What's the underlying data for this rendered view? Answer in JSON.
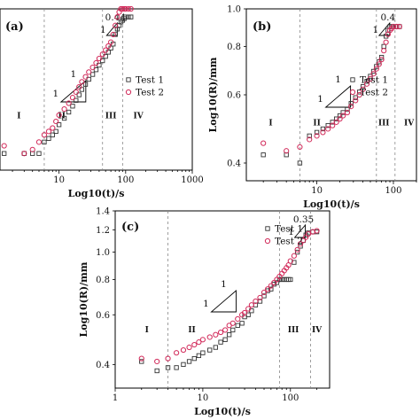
{
  "colors": {
    "test1": "#333333",
    "test2": "#d22a5a",
    "axis": "#000000",
    "divider": "#888888"
  },
  "chart_data": [
    {
      "panel": "(a)",
      "type": "scatter",
      "xscale": "log",
      "yscale": "log",
      "xlabel": "Log10(t)/s",
      "ylabel": "",
      "xlim": [
        1.3,
        1000
      ],
      "ylim": [
        0.36,
        1.0
      ],
      "xticks": [
        10,
        100,
        1000
      ],
      "xtick_labels": [
        "10",
        "100",
        "1000"
      ],
      "yticks": [],
      "ytick_labels": [],
      "dividers": [
        6,
        45,
        90
      ],
      "stages": [
        {
          "label": "I",
          "x": 2.5,
          "y": 0.5
        },
        {
          "label": "II",
          "x": 11,
          "y": 0.5
        },
        {
          "label": "III",
          "x": 60,
          "y": 0.5
        },
        {
          "label": "IV",
          "x": 155,
          "y": 0.5
        }
      ],
      "legend": {
        "position": "right",
        "entries": [
          "Test 1",
          "Test 2"
        ]
      },
      "slope_triangle": {
        "run_label": "1",
        "rise_label": "1"
      },
      "tail_slope": {
        "label": "0.44",
        "rise_label": "1"
      },
      "series": [
        {
          "name": "Test 1",
          "marker": "square",
          "x": [
            1.5,
            3.0,
            4.0,
            5.0,
            6.0,
            7.0,
            8.0,
            9.0,
            10.0,
            12.0,
            14.0,
            16.0,
            18.0,
            20.0,
            22.0,
            25.0,
            28.0,
            32.0,
            36.0,
            40.0,
            45.0,
            50.0,
            55.0,
            60.0,
            65.0,
            70.0,
            75.0,
            80.0,
            85.0,
            90.0,
            95.0,
            100.0,
            110.0,
            120.0
          ],
          "y": [
            0.4,
            0.4,
            0.4,
            0.4,
            0.43,
            0.44,
            0.45,
            0.46,
            0.48,
            0.5,
            0.52,
            0.54,
            0.56,
            0.58,
            0.6,
            0.62,
            0.64,
            0.66,
            0.68,
            0.7,
            0.72,
            0.74,
            0.76,
            0.78,
            0.8,
            0.85,
            0.88,
            0.9,
            0.92,
            0.93,
            0.94,
            0.95,
            0.95,
            0.95
          ]
        },
        {
          "name": "Test 2",
          "marker": "circle",
          "x": [
            1.5,
            3.0,
            4.0,
            5.0,
            6.0,
            7.0,
            8.0,
            9.0,
            10.0,
            12.0,
            14.0,
            16.0,
            18.0,
            20.0,
            22.0,
            25.0,
            28.0,
            32.0,
            36.0,
            40.0,
            45.0,
            50.0,
            55.0,
            60.0,
            65.0,
            70.0,
            75.0,
            80.0,
            85.0,
            90.0,
            95.0,
            100.0,
            110.0,
            120.0
          ],
          "y": [
            0.42,
            0.4,
            0.41,
            0.43,
            0.45,
            0.46,
            0.47,
            0.49,
            0.51,
            0.53,
            0.55,
            0.57,
            0.59,
            0.61,
            0.63,
            0.65,
            0.67,
            0.69,
            0.71,
            0.73,
            0.75,
            0.77,
            0.79,
            0.81,
            0.85,
            0.9,
            0.95,
            0.98,
            1.0,
            1.0,
            1.0,
            1.0,
            1.0,
            1.0
          ]
        }
      ]
    },
    {
      "panel": "(b)",
      "type": "scatter",
      "xscale": "log",
      "yscale": "log",
      "xlabel": "Log10(t)/s",
      "ylabel": "Log10(R)/mm",
      "xlim": [
        1.2,
        200
      ],
      "ylim": [
        0.36,
        1.0
      ],
      "xticks": [
        10,
        100
      ],
      "xtick_labels": [
        "10",
        "100"
      ],
      "yticks": [
        0.4,
        0.6,
        0.8,
        1.0
      ],
      "ytick_labels": [
        "0.4",
        "0.6",
        "0.8",
        "1.0"
      ],
      "dividers": [
        6,
        60,
        105
      ],
      "stages": [
        {
          "label": "I",
          "x": 2.5,
          "y": 0.5
        },
        {
          "label": "II",
          "x": 10,
          "y": 0.5
        },
        {
          "label": "III",
          "x": 75,
          "y": 0.5
        },
        {
          "label": "IV",
          "x": 160,
          "y": 0.5
        }
      ],
      "legend": {
        "position": "right",
        "entries": [
          "Test 1",
          "Test 2"
        ]
      },
      "slope_triangle": {
        "run_label": "1",
        "rise_label": "1"
      },
      "tail_slope": {
        "label": "0.4",
        "rise_label": "1"
      },
      "series": [
        {
          "name": "Test 1",
          "marker": "square",
          "x": [
            2.0,
            4.0,
            6.0,
            8.0,
            10.0,
            12.0,
            14.0,
            16.0,
            18.0,
            20.0,
            22.0,
            25.0,
            28.0,
            32.0,
            36.0,
            40.0,
            45.0,
            50.0,
            55.0,
            60.0,
            65.0,
            70.0,
            75.0,
            80.0,
            85.0,
            90.0,
            95.0,
            100.0,
            110.0,
            120.0
          ],
          "y": [
            0.42,
            0.42,
            0.4,
            0.47,
            0.48,
            0.49,
            0.5,
            0.51,
            0.52,
            0.53,
            0.54,
            0.55,
            0.57,
            0.59,
            0.61,
            0.63,
            0.65,
            0.67,
            0.69,
            0.71,
            0.73,
            0.75,
            0.8,
            0.85,
            0.88,
            0.9,
            0.9,
            0.9,
            0.9,
            0.9
          ]
        },
        {
          "name": "Test 2",
          "marker": "circle",
          "x": [
            2.0,
            4.0,
            6.0,
            8.0,
            10.0,
            12.0,
            14.0,
            16.0,
            18.0,
            20.0,
            22.0,
            25.0,
            28.0,
            32.0,
            36.0,
            40.0,
            45.0,
            50.0,
            55.0,
            60.0,
            65.0,
            70.0,
            75.0,
            80.0,
            85.0,
            90.0,
            95.0,
            100.0,
            110.0,
            120.0
          ],
          "y": [
            0.45,
            0.43,
            0.44,
            0.46,
            0.47,
            0.48,
            0.49,
            0.5,
            0.51,
            0.52,
            0.53,
            0.54,
            0.56,
            0.58,
            0.6,
            0.62,
            0.64,
            0.66,
            0.68,
            0.7,
            0.72,
            0.74,
            0.78,
            0.82,
            0.86,
            0.88,
            0.89,
            0.9,
            0.9,
            0.9
          ]
        }
      ]
    },
    {
      "panel": "(c)",
      "type": "scatter",
      "xscale": "log",
      "yscale": "log",
      "xlabel": "Log10(t)/s",
      "ylabel": "Log10(R)/mm",
      "xlim": [
        1,
        280
      ],
      "ylim": [
        0.33,
        1.4
      ],
      "xticks": [
        1,
        10,
        100
      ],
      "xtick_labels": [
        "1",
        "10",
        "100"
      ],
      "yticks": [
        0.4,
        0.6,
        0.8,
        1.0,
        1.2,
        1.4
      ],
      "ytick_labels": [
        "0.4",
        "0.6",
        "0.8",
        "1.0",
        "1.2",
        "1.4"
      ],
      "dividers": [
        4,
        75,
        170
      ],
      "stages": [
        {
          "label": "I",
          "x": 2.3,
          "y": 0.52
        },
        {
          "label": "II",
          "x": 7.5,
          "y": 0.52
        },
        {
          "label": "III",
          "x": 108,
          "y": 0.52
        },
        {
          "label": "IV",
          "x": 200,
          "y": 0.52
        }
      ],
      "legend": {
        "position": "top-right",
        "entries": [
          "Test 1",
          "Test 2"
        ]
      },
      "slope_triangle": {
        "run_label": "1",
        "rise_label": "1"
      },
      "tail_slope": {
        "label": "0.35",
        "rise_label": "1"
      },
      "series": [
        {
          "name": "Test 1",
          "marker": "square",
          "x": [
            2,
            3,
            4,
            5,
            6,
            7,
            8,
            9,
            10,
            12,
            14,
            16,
            18,
            20,
            22,
            25,
            28,
            30,
            33,
            36,
            40,
            45,
            50,
            55,
            60,
            65,
            70,
            75,
            80,
            85,
            90,
            95,
            100,
            110,
            120,
            130,
            140,
            150,
            160,
            180,
            200
          ],
          "y": [
            0.41,
            0.38,
            0.39,
            0.39,
            0.4,
            0.41,
            0.42,
            0.43,
            0.44,
            0.45,
            0.46,
            0.48,
            0.49,
            0.51,
            0.53,
            0.55,
            0.56,
            0.59,
            0.6,
            0.62,
            0.65,
            0.67,
            0.7,
            0.73,
            0.74,
            0.77,
            0.78,
            0.8,
            0.8,
            0.8,
            0.8,
            0.8,
            0.8,
            0.92,
            1.0,
            1.05,
            1.1,
            1.15,
            1.17,
            1.18,
            1.18
          ]
        },
        {
          "name": "Test 2",
          "marker": "circle",
          "x": [
            2,
            3,
            4,
            5,
            6,
            7,
            8,
            9,
            10,
            12,
            14,
            16,
            18,
            20,
            22,
            25,
            28,
            30,
            33,
            36,
            40,
            45,
            50,
            55,
            60,
            65,
            70,
            75,
            80,
            85,
            90,
            95,
            100,
            110,
            120,
            130,
            140,
            150,
            160,
            180,
            200
          ],
          "y": [
            0.42,
            0.41,
            0.42,
            0.44,
            0.45,
            0.46,
            0.47,
            0.48,
            0.49,
            0.5,
            0.51,
            0.52,
            0.53,
            0.55,
            0.56,
            0.58,
            0.6,
            0.61,
            0.63,
            0.65,
            0.67,
            0.69,
            0.72,
            0.74,
            0.76,
            0.78,
            0.8,
            0.82,
            0.84,
            0.86,
            0.88,
            0.9,
            0.93,
            0.97,
            1.02,
            1.07,
            1.1,
            1.13,
            1.16,
            1.18,
            1.19
          ]
        }
      ]
    }
  ]
}
